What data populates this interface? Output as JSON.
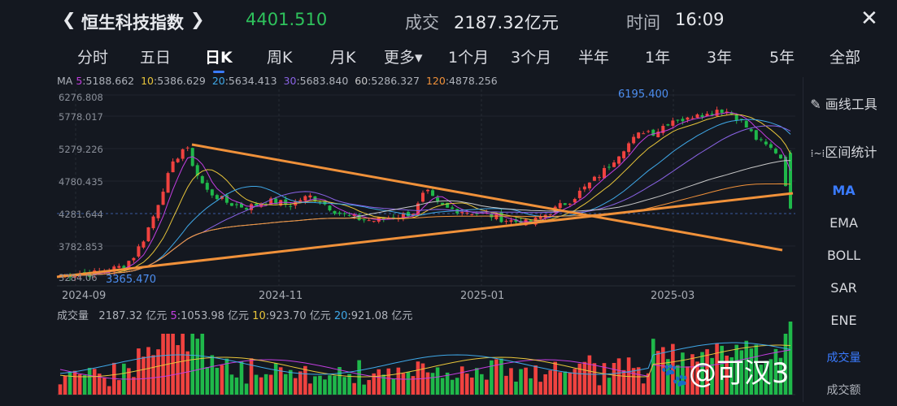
{
  "header": {
    "back_icon": "chevron-left",
    "title": "恒生科技指数",
    "forward_icon": "chevron-right",
    "price": "4401.510",
    "volume_label": "成交",
    "volume_value": "2187.32亿元",
    "time_label": "时间",
    "time_value": "16:09",
    "close_icon": "close-x"
  },
  "tabs": [
    "分时",
    "五日",
    "日K",
    "周K",
    "月K",
    "更多▾",
    "1个月",
    "3个月",
    "半年",
    "1年",
    "3年",
    "5年",
    "全部"
  ],
  "active_tab": "日K",
  "ma_legend": {
    "label": "MA",
    "items": [
      {
        "k": "5",
        "v": ":5188.662",
        "color": "#c23ee0"
      },
      {
        "k": "10",
        "v": ":5386.629",
        "color": "#e8c53a"
      },
      {
        "k": "20",
        "v": ":5634.413",
        "color": "#3fa8e8"
      },
      {
        "k": "30",
        "v": ":5683.840",
        "color": "#8a63e6"
      },
      {
        "k": "60",
        "v": ":5286.327",
        "color": "#c8c8c8"
      },
      {
        "k": "120",
        "v": ":4878.256",
        "color": "#f0913a"
      }
    ]
  },
  "y_axis": [
    "6276.808",
    "5778.017",
    "5279.226",
    "4780.435",
    "4281.644",
    "3782.853",
    "3284.06"
  ],
  "x_axis": [
    "2024-09",
    "2024-11",
    "2025-01",
    "2025-03"
  ],
  "annotations": {
    "high": "6195.400",
    "low": "3365.470"
  },
  "volume_legend": {
    "label": "成交量",
    "value": "2187.32 亿元",
    "items": [
      {
        "k": "5",
        "v": ":1053.98 亿元",
        "color": "#c23ee0"
      },
      {
        "k": "10",
        "v": ":923.70 亿元",
        "color": "#e8c53a"
      },
      {
        "k": "20",
        "v": ":921.08 亿元",
        "color": "#3fa8e8"
      }
    ]
  },
  "side_panel": {
    "draw_tool": "画线工具",
    "range_stats": "区间统计",
    "indicators": [
      "MA",
      "EMA",
      "BOLL",
      "SAR",
      "ENE"
    ],
    "active_indicator": "MA",
    "volume": "成交量",
    "turnover": "成交额"
  },
  "watermark": "@可汉3",
  "colors": {
    "up": "#f0423f",
    "down": "#1fb84a",
    "trendline": "#f0913a",
    "accent": "#3a7bff",
    "price": "#2ec25c"
  },
  "chart_data": {
    "type": "candlestick",
    "price_path": [
      3300,
      3310,
      3330,
      3320,
      3360,
      3400,
      3450,
      3600,
      3900,
      4300,
      4800,
      5200,
      5450,
      5000,
      4700,
      4600,
      4500,
      4450,
      4420,
      4480,
      4520,
      4500,
      4460,
      4550,
      4600,
      4520,
      4400,
      4300,
      4250,
      4220,
      4200,
      4230,
      4260,
      4300,
      4350,
      4700,
      4500,
      4400,
      4380,
      4350,
      4330,
      4300,
      4250,
      4200,
      4180,
      4150,
      4250,
      4350,
      4450,
      4550,
      4700,
      4850,
      5000,
      5200,
      5400,
      5550,
      5700,
      5650,
      5800,
      5900,
      5850,
      6000,
      5950,
      6050,
      6000,
      5900,
      5700,
      5500,
      5400,
      5300,
      4401
    ]
  }
}
